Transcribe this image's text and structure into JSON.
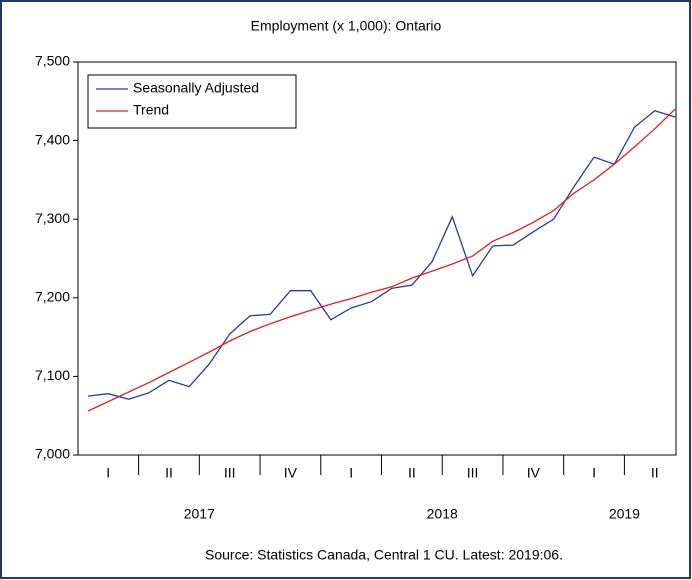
{
  "chart_data": {
    "type": "line",
    "title": "Employment (x 1,000): Ontario",
    "source": "Source: Statistics Canada, Central 1 CU. Latest: 2019:06.",
    "quarter_labels": [
      "I",
      "II",
      "III",
      "IV",
      "I",
      "II",
      "III",
      "IV",
      "I",
      "II"
    ],
    "year_labels": [
      "2017",
      "2018",
      "2019"
    ],
    "series": [
      {
        "name": "Seasonally Adjusted",
        "color": "#2b3a9a",
        "values": [
          7075,
          7078,
          7071,
          7079,
          7095,
          7087,
          7116,
          7154,
          7177,
          7179,
          7209,
          7209,
          7172,
          7187,
          7195,
          7212,
          7216,
          7246,
          7303,
          7228,
          7266,
          7267,
          7284,
          7300,
          7341,
          7379,
          7370,
          7417,
          7438,
          7430
        ]
      },
      {
        "name": "Trend",
        "color": "#e02020",
        "values": [
          7056,
          7068,
          7080,
          7092,
          7105,
          7118,
          7131,
          7145,
          7157,
          7167,
          7176,
          7184,
          7192,
          7199,
          7207,
          7214,
          7225,
          7234,
          7243,
          7253,
          7272,
          7283,
          7296,
          7311,
          7333,
          7350,
          7370,
          7392,
          7415,
          7440
        ]
      }
    ],
    "ylim": [
      7000,
      7500
    ],
    "yticks": [
      {
        "value": 7000,
        "label": "7,000"
      },
      {
        "value": 7100,
        "label": "7,100"
      },
      {
        "value": 7200,
        "label": "7,200"
      },
      {
        "value": 7300,
        "label": "7,300"
      },
      {
        "value": 7400,
        "label": "7,400"
      },
      {
        "value": 7500,
        "label": "7,500"
      }
    ],
    "legend": "upper left"
  }
}
